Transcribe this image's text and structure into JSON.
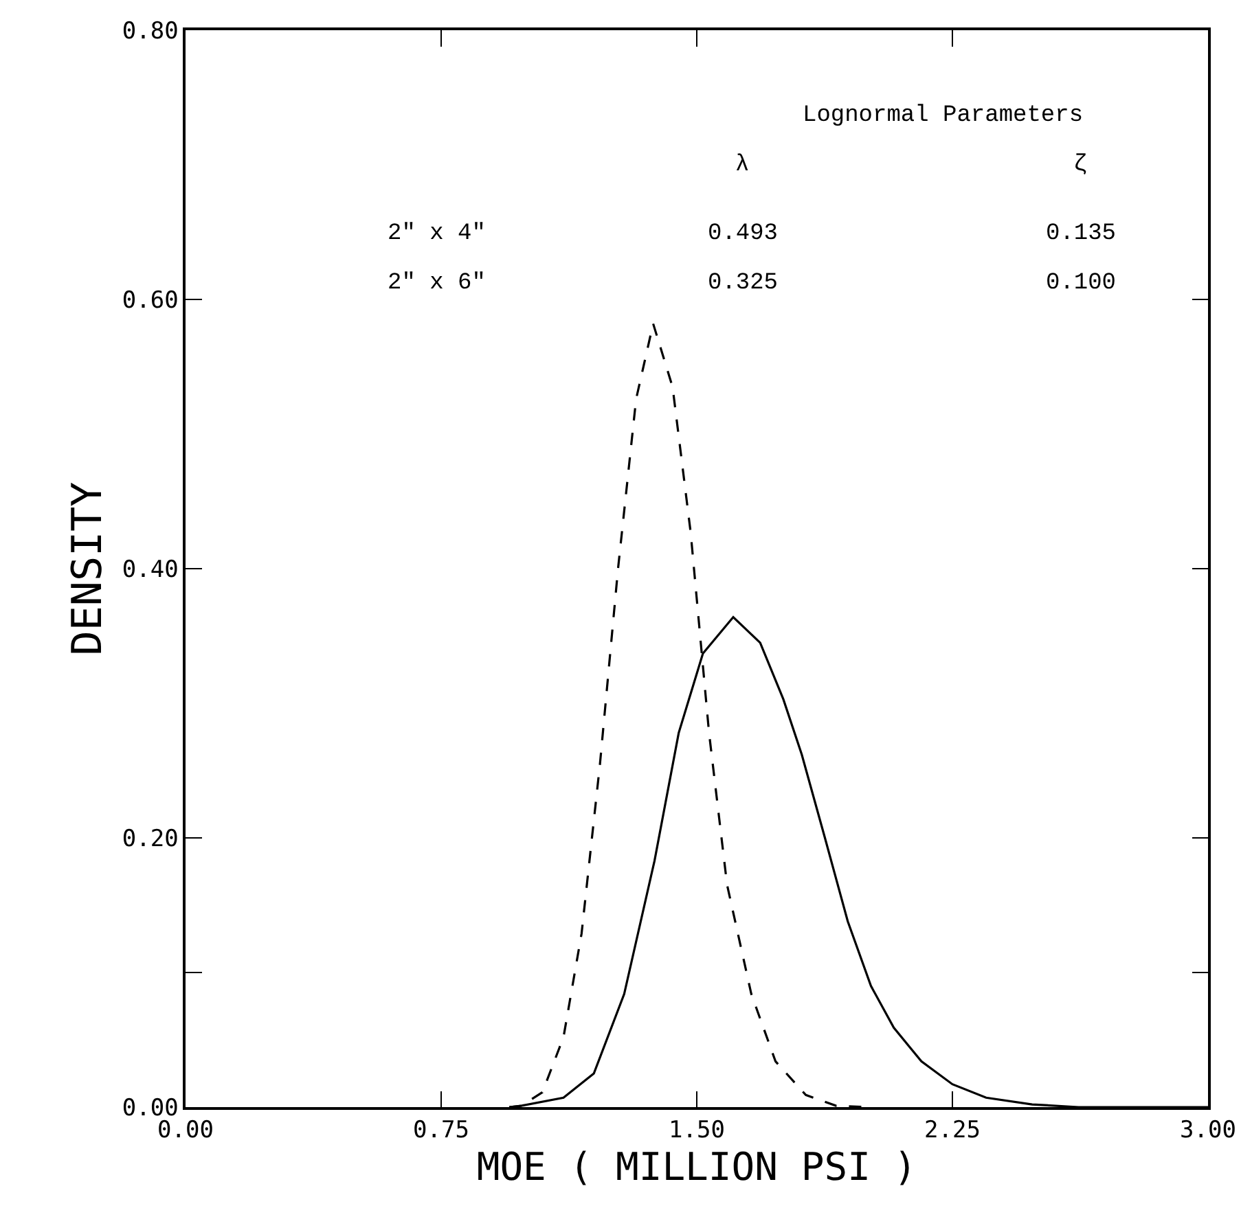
{
  "chart_data": {
    "type": "line",
    "xlabel": "MOE ( MILLION PSI )",
    "ylabel": "DENSITY",
    "xlim": [
      0,
      3
    ],
    "xticks": [
      {
        "value": 0,
        "label": "0.00"
      },
      {
        "value": 0.75,
        "label": "0.75"
      },
      {
        "value": 1.5,
        "label": "1.50"
      },
      {
        "value": 2.25,
        "label": "2.25"
      },
      {
        "value": 3,
        "label": "3.00"
      }
    ],
    "ylim": [
      0,
      0.8
    ],
    "yticks": [
      {
        "value": 0,
        "label": "0.00"
      },
      {
        "value": 0.1,
        "label": null
      },
      {
        "value": 0.2,
        "label": "0.20"
      },
      {
        "value": 0.4,
        "label": "0.40"
      },
      {
        "value": 0.6,
        "label": "0.60"
      },
      {
        "value": 0.8,
        "label": "0.80"
      }
    ],
    "marker": "none",
    "series": [
      {
        "color": "#000000",
        "line_style": "solid",
        "x": [
          0.95,
          0.985,
          1.109,
          1.198,
          1.287,
          1.376,
          1.447,
          1.518,
          1.607,
          1.686,
          1.754,
          1.808,
          1.876,
          1.943,
          2.011,
          2.078,
          2.159,
          2.25,
          2.349,
          2.484,
          2.62,
          3.0
        ],
        "values": [
          0,
          0.001,
          0.007,
          0.025,
          0.084,
          0.183,
          0.278,
          0.337,
          0.364,
          0.345,
          0.303,
          0.262,
          0.2,
          0.138,
          0.09,
          0.059,
          0.034,
          0.017,
          0.007,
          0.002,
          0,
          0
        ]
      },
      {
        "color": "#000000",
        "line_style": "dashed",
        "x": [
          0.95,
          0.985,
          1.047,
          1.109,
          1.162,
          1.216,
          1.269,
          1.322,
          1.372,
          1.429,
          1.482,
          1.536,
          1.589,
          1.66,
          1.731,
          1.82,
          1.909,
          2.0
        ],
        "values": [
          0,
          0.001,
          0.011,
          0.052,
          0.129,
          0.255,
          0.4,
          0.526,
          0.582,
          0.535,
          0.427,
          0.278,
          0.165,
          0.084,
          0.034,
          0.009,
          0.001,
          0
        ]
      }
    ],
    "annotations": [
      "Lognormal Parameters",
      "λ",
      "ζ",
      "2\" x 4\"",
      "0.493",
      "0.135",
      "2\" x 6\"",
      "0.325",
      "0.100"
    ]
  }
}
